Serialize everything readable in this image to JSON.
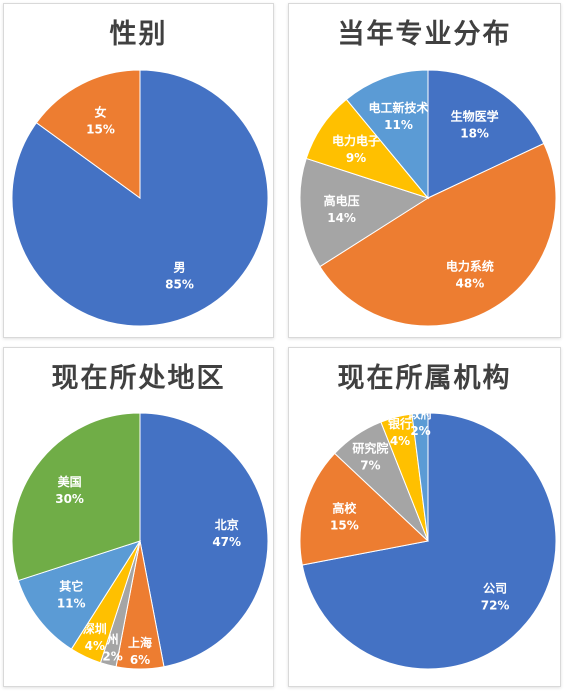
{
  "chart_data": [
    {
      "type": "pie",
      "title": "性别",
      "categories": [
        "男",
        "女"
      ],
      "values": [
        85,
        15
      ],
      "value_labels": [
        "85%",
        "15%"
      ],
      "colors": [
        "#4472C4",
        "#ED7D31"
      ]
    },
    {
      "type": "pie",
      "title": "当年专业分布",
      "categories": [
        "生物医学",
        "电力系统",
        "高电压",
        "电力电子",
        "电工新技术"
      ],
      "values": [
        18,
        48,
        14,
        9,
        11
      ],
      "value_labels": [
        "18%",
        "48%",
        "14%",
        "9%",
        "11%"
      ],
      "colors": [
        "#4472C4",
        "#ED7D31",
        "#A5A5A5",
        "#FFC000",
        "#5B9BD5"
      ]
    },
    {
      "type": "pie",
      "title": "现在所处地区",
      "categories": [
        "北京",
        "上海",
        "广州",
        "深圳",
        "其它",
        "美国"
      ],
      "values": [
        47,
        6,
        2,
        4,
        11,
        30
      ],
      "value_labels": [
        "47%",
        "6%",
        "2%",
        "4%",
        "11%",
        "30%"
      ],
      "visible_labels": [
        "北京",
        "上海",
        "州",
        "深圳",
        "其它",
        "美国"
      ],
      "colors": [
        "#4472C4",
        "#ED7D31",
        "#A5A5A5",
        "#FFC000",
        "#5B9BD5",
        "#70AD47"
      ]
    },
    {
      "type": "pie",
      "title": "现在所属机构",
      "categories": [
        "公司",
        "高校",
        "研究院",
        "银行",
        "政府"
      ],
      "values": [
        72,
        15,
        7,
        4,
        2
      ],
      "value_labels": [
        "72%",
        "15%",
        "7%",
        "4%",
        "2%"
      ],
      "colors": [
        "#4472C4",
        "#ED7D31",
        "#A5A5A5",
        "#FFC000",
        "#5B9BD5"
      ]
    }
  ]
}
